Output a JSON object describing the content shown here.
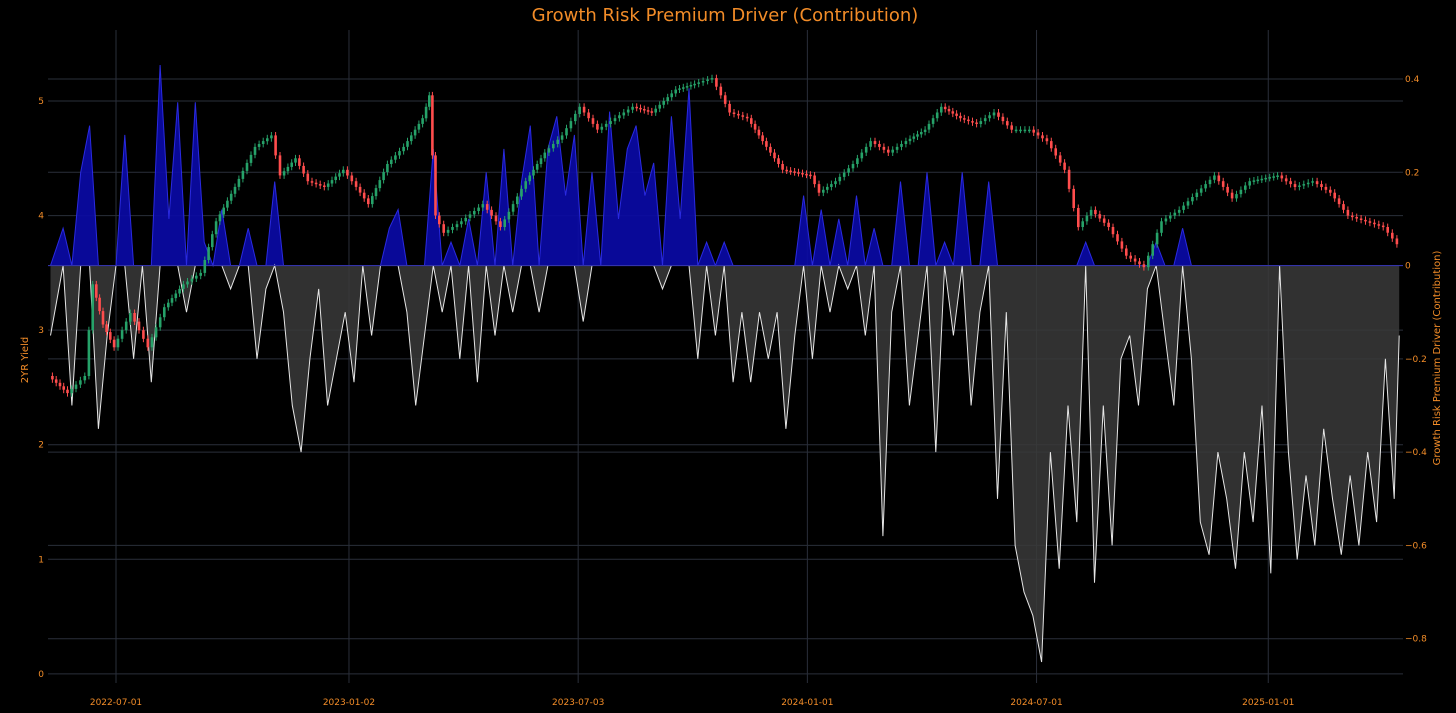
{
  "chart_data": {
    "type": "line",
    "title": "Growth Risk Premium Driver (Contribution)",
    "y_left_label": "2YR Yield",
    "y_right_label": "Growth Risk Premium Driver (Contribution)",
    "x_ticks": [
      "2022-07-01",
      "2023-01-02",
      "2023-07-03",
      "2024-01-01",
      "2024-07-01",
      "2025-01-01"
    ],
    "x_range": [
      "2022-05-08",
      "2025-04-18"
    ],
    "y_left_ticks": [
      "0",
      "1",
      "2",
      "3",
      "4",
      "5"
    ],
    "y_left_range": [
      -0.08,
      5.62
    ],
    "y_right_ticks": [
      "−0.8",
      "−0.6",
      "−0.4",
      "−0.2",
      "0",
      "0.2",
      "0.4"
    ],
    "y_right_range": [
      -0.895,
      0.505
    ],
    "grid": true,
    "colors": {
      "up": "#26a269",
      "down": "#ff4d4d",
      "positive_area": "#0a0aa8",
      "negative_line": "#e6e6e6",
      "negative_fill": "#3a3a3a",
      "zero_line": "#3333aa",
      "text": "#f28c28"
    },
    "series": [
      {
        "name": "2YR Yield",
        "kind": "candlestick-close",
        "axis": "left",
        "points": [
          [
            "2022-05-10",
            2.6
          ],
          [
            "2022-05-25",
            2.45
          ],
          [
            "2022-06-08",
            2.6
          ],
          [
            "2022-06-14",
            3.4
          ],
          [
            "2022-06-22",
            3.05
          ],
          [
            "2022-07-01",
            2.85
          ],
          [
            "2022-07-14",
            3.15
          ],
          [
            "2022-07-28",
            2.85
          ],
          [
            "2022-08-10",
            3.2
          ],
          [
            "2022-08-25",
            3.4
          ],
          [
            "2022-09-08",
            3.5
          ],
          [
            "2022-09-20",
            3.95
          ],
          [
            "2022-10-05",
            4.25
          ],
          [
            "2022-10-21",
            4.6
          ],
          [
            "2022-11-03",
            4.7
          ],
          [
            "2022-11-10",
            4.35
          ],
          [
            "2022-11-22",
            4.5
          ],
          [
            "2022-12-02",
            4.3
          ],
          [
            "2022-12-15",
            4.25
          ],
          [
            "2022-12-30",
            4.4
          ],
          [
            "2023-01-06",
            4.3
          ],
          [
            "2023-01-19",
            4.1
          ],
          [
            "2023-02-03",
            4.45
          ],
          [
            "2023-02-16",
            4.6
          ],
          [
            "2023-03-03",
            4.85
          ],
          [
            "2023-03-08",
            5.05
          ],
          [
            "2023-03-13",
            4.0
          ],
          [
            "2023-03-20",
            3.85
          ],
          [
            "2023-04-03",
            3.95
          ],
          [
            "2023-04-20",
            4.1
          ],
          [
            "2023-05-04",
            3.9
          ],
          [
            "2023-05-24",
            4.3
          ],
          [
            "2023-06-08",
            4.55
          ],
          [
            "2023-06-22",
            4.7
          ],
          [
            "2023-07-06",
            4.95
          ],
          [
            "2023-07-20",
            4.75
          ],
          [
            "2023-08-03",
            4.85
          ],
          [
            "2023-08-17",
            4.95
          ],
          [
            "2023-09-01",
            4.9
          ],
          [
            "2023-09-20",
            5.1
          ],
          [
            "2023-10-05",
            5.15
          ],
          [
            "2023-10-19",
            5.2
          ],
          [
            "2023-11-02",
            4.9
          ],
          [
            "2023-11-16",
            4.85
          ],
          [
            "2023-12-01",
            4.6
          ],
          [
            "2023-12-14",
            4.4
          ],
          [
            "2024-01-05",
            4.35
          ],
          [
            "2024-01-12",
            4.2
          ],
          [
            "2024-01-25",
            4.3
          ],
          [
            "2024-02-08",
            4.45
          ],
          [
            "2024-02-22",
            4.65
          ],
          [
            "2024-03-07",
            4.55
          ],
          [
            "2024-03-21",
            4.65
          ],
          [
            "2024-04-05",
            4.75
          ],
          [
            "2024-04-18",
            4.95
          ],
          [
            "2024-05-03",
            4.85
          ],
          [
            "2024-05-16",
            4.8
          ],
          [
            "2024-05-30",
            4.9
          ],
          [
            "2024-06-13",
            4.75
          ],
          [
            "2024-06-27",
            4.75
          ],
          [
            "2024-07-11",
            4.65
          ],
          [
            "2024-07-25",
            4.4
          ],
          [
            "2024-08-05",
            3.9
          ],
          [
            "2024-08-15",
            4.05
          ],
          [
            "2024-08-29",
            3.9
          ],
          [
            "2024-09-12",
            3.65
          ],
          [
            "2024-09-26",
            3.55
          ],
          [
            "2024-10-10",
            3.95
          ],
          [
            "2024-10-24",
            4.05
          ],
          [
            "2024-11-07",
            4.2
          ],
          [
            "2024-11-21",
            4.35
          ],
          [
            "2024-12-05",
            4.15
          ],
          [
            "2024-12-19",
            4.3
          ],
          [
            "2025-01-10",
            4.35
          ],
          [
            "2025-01-24",
            4.25
          ],
          [
            "2025-02-07",
            4.3
          ],
          [
            "2025-02-21",
            4.2
          ],
          [
            "2025-03-07",
            4.0
          ],
          [
            "2025-03-21",
            3.95
          ],
          [
            "2025-04-04",
            3.9
          ],
          [
            "2025-04-15",
            3.75
          ]
        ]
      },
      {
        "name": "Growth Risk Premium Driver (Contribution)",
        "kind": "area",
        "axis": "right",
        "points": [
          [
            "2022-05-10",
            -0.15
          ],
          [
            "2022-05-20",
            0.08
          ],
          [
            "2022-05-27",
            -0.3
          ],
          [
            "2022-06-03",
            0.2
          ],
          [
            "2022-06-10",
            0.3
          ],
          [
            "2022-06-17",
            -0.35
          ],
          [
            "2022-06-24",
            -0.15
          ],
          [
            "2022-07-01",
            0.0
          ],
          [
            "2022-07-08",
            0.28
          ],
          [
            "2022-07-15",
            -0.2
          ],
          [
            "2022-07-22",
            0.0
          ],
          [
            "2022-07-29",
            -0.25
          ],
          [
            "2022-08-05",
            0.43
          ],
          [
            "2022-08-12",
            0.1
          ],
          [
            "2022-08-19",
            0.35
          ],
          [
            "2022-08-26",
            -0.1
          ],
          [
            "2022-09-02",
            0.35
          ],
          [
            "2022-09-09",
            0.05
          ],
          [
            "2022-09-16",
            0.0
          ],
          [
            "2022-09-23",
            0.12
          ],
          [
            "2022-09-30",
            -0.05
          ],
          [
            "2022-10-07",
            0.0
          ],
          [
            "2022-10-14",
            0.08
          ],
          [
            "2022-10-21",
            -0.2
          ],
          [
            "2022-10-28",
            -0.05
          ],
          [
            "2022-11-04",
            0.18
          ],
          [
            "2022-11-11",
            -0.1
          ],
          [
            "2022-11-18",
            -0.3
          ],
          [
            "2022-11-25",
            -0.4
          ],
          [
            "2022-12-02",
            -0.2
          ],
          [
            "2022-12-09",
            -0.05
          ],
          [
            "2022-12-16",
            -0.3
          ],
          [
            "2022-12-23",
            -0.2
          ],
          [
            "2022-12-30",
            -0.1
          ],
          [
            "2023-01-06",
            -0.25
          ],
          [
            "2023-01-13",
            0.0
          ],
          [
            "2023-01-20",
            -0.15
          ],
          [
            "2023-01-27",
            0.0
          ],
          [
            "2023-02-03",
            0.08
          ],
          [
            "2023-02-10",
            0.12
          ],
          [
            "2023-02-17",
            -0.1
          ],
          [
            "2023-02-24",
            -0.3
          ],
          [
            "2023-03-03",
            -0.15
          ],
          [
            "2023-03-10",
            0.25
          ],
          [
            "2023-03-17",
            -0.1
          ],
          [
            "2023-03-24",
            0.05
          ],
          [
            "2023-03-31",
            -0.2
          ],
          [
            "2023-04-07",
            0.1
          ],
          [
            "2023-04-14",
            -0.25
          ],
          [
            "2023-04-21",
            0.2
          ],
          [
            "2023-04-28",
            -0.15
          ],
          [
            "2023-05-05",
            0.25
          ],
          [
            "2023-05-12",
            -0.1
          ],
          [
            "2023-05-19",
            0.18
          ],
          [
            "2023-05-26",
            0.3
          ],
          [
            "2023-06-02",
            -0.1
          ],
          [
            "2023-06-09",
            0.25
          ],
          [
            "2023-06-16",
            0.32
          ],
          [
            "2023-06-23",
            0.15
          ],
          [
            "2023-06-30",
            0.28
          ],
          [
            "2023-07-07",
            -0.12
          ],
          [
            "2023-07-14",
            0.2
          ],
          [
            "2023-07-21",
            0.0
          ],
          [
            "2023-07-28",
            0.33
          ],
          [
            "2023-08-04",
            0.1
          ],
          [
            "2023-08-11",
            0.25
          ],
          [
            "2023-08-18",
            0.3
          ],
          [
            "2023-08-25",
            0.15
          ],
          [
            "2023-09-01",
            0.22
          ],
          [
            "2023-09-08",
            -0.05
          ],
          [
            "2023-09-15",
            0.32
          ],
          [
            "2023-09-22",
            0.1
          ],
          [
            "2023-09-29",
            0.38
          ],
          [
            "2023-10-06",
            -0.2
          ],
          [
            "2023-10-13",
            0.05
          ],
          [
            "2023-10-20",
            -0.15
          ],
          [
            "2023-10-27",
            0.05
          ],
          [
            "2023-11-03",
            -0.25
          ],
          [
            "2023-11-10",
            -0.1
          ],
          [
            "2023-11-17",
            -0.25
          ],
          [
            "2023-11-24",
            -0.1
          ],
          [
            "2023-12-01",
            -0.2
          ],
          [
            "2023-12-08",
            -0.1
          ],
          [
            "2023-12-15",
            -0.35
          ],
          [
            "2023-12-22",
            -0.15
          ],
          [
            "2023-12-29",
            0.15
          ],
          [
            "2024-01-05",
            -0.2
          ],
          [
            "2024-01-12",
            0.12
          ],
          [
            "2024-01-19",
            -0.1
          ],
          [
            "2024-01-26",
            0.1
          ],
          [
            "2024-02-02",
            -0.05
          ],
          [
            "2024-02-09",
            0.15
          ],
          [
            "2024-02-16",
            -0.15
          ],
          [
            "2024-02-23",
            0.08
          ],
          [
            "2024-03-01",
            -0.58
          ],
          [
            "2024-03-08",
            -0.1
          ],
          [
            "2024-03-15",
            0.18
          ],
          [
            "2024-03-22",
            -0.3
          ],
          [
            "2024-03-29",
            -0.15
          ],
          [
            "2024-04-05",
            0.2
          ],
          [
            "2024-04-12",
            -0.4
          ],
          [
            "2024-04-19",
            0.05
          ],
          [
            "2024-04-26",
            -0.15
          ],
          [
            "2024-05-03",
            0.2
          ],
          [
            "2024-05-10",
            -0.3
          ],
          [
            "2024-05-17",
            -0.1
          ],
          [
            "2024-05-24",
            0.18
          ],
          [
            "2024-05-31",
            -0.5
          ],
          [
            "2024-06-07",
            -0.1
          ],
          [
            "2024-06-14",
            -0.6
          ],
          [
            "2024-06-21",
            -0.7
          ],
          [
            "2024-06-28",
            -0.75
          ],
          [
            "2024-07-05",
            -0.85
          ],
          [
            "2024-07-12",
            -0.4
          ],
          [
            "2024-07-19",
            -0.65
          ],
          [
            "2024-07-26",
            -0.3
          ],
          [
            "2024-08-02",
            -0.55
          ],
          [
            "2024-08-09",
            0.05
          ],
          [
            "2024-08-16",
            -0.68
          ],
          [
            "2024-08-23",
            -0.3
          ],
          [
            "2024-08-30",
            -0.6
          ],
          [
            "2024-09-06",
            -0.2
          ],
          [
            "2024-09-13",
            -0.15
          ],
          [
            "2024-09-20",
            -0.3
          ],
          [
            "2024-09-27",
            -0.05
          ],
          [
            "2024-10-04",
            0.05
          ],
          [
            "2024-10-11",
            -0.15
          ],
          [
            "2024-10-18",
            -0.3
          ],
          [
            "2024-10-25",
            0.08
          ],
          [
            "2024-11-01",
            -0.2
          ],
          [
            "2024-11-08",
            -0.55
          ],
          [
            "2024-11-15",
            -0.62
          ],
          [
            "2024-11-22",
            -0.4
          ],
          [
            "2024-11-29",
            -0.5
          ],
          [
            "2024-12-06",
            -0.65
          ],
          [
            "2024-12-13",
            -0.4
          ],
          [
            "2024-12-20",
            -0.55
          ],
          [
            "2024-12-27",
            -0.3
          ],
          [
            "2025-01-03",
            -0.66
          ],
          [
            "2025-01-10",
            0.0
          ],
          [
            "2025-01-17",
            -0.4
          ],
          [
            "2025-01-24",
            -0.63
          ],
          [
            "2025-01-31",
            -0.45
          ],
          [
            "2025-02-07",
            -0.6
          ],
          [
            "2025-02-14",
            -0.35
          ],
          [
            "2025-02-21",
            -0.5
          ],
          [
            "2025-02-28",
            -0.62
          ],
          [
            "2025-03-07",
            -0.45
          ],
          [
            "2025-03-14",
            -0.6
          ],
          [
            "2025-03-21",
            -0.4
          ],
          [
            "2025-03-28",
            -0.55
          ],
          [
            "2025-04-04",
            -0.2
          ],
          [
            "2025-04-11",
            -0.5
          ],
          [
            "2025-04-15",
            -0.15
          ]
        ]
      }
    ]
  }
}
